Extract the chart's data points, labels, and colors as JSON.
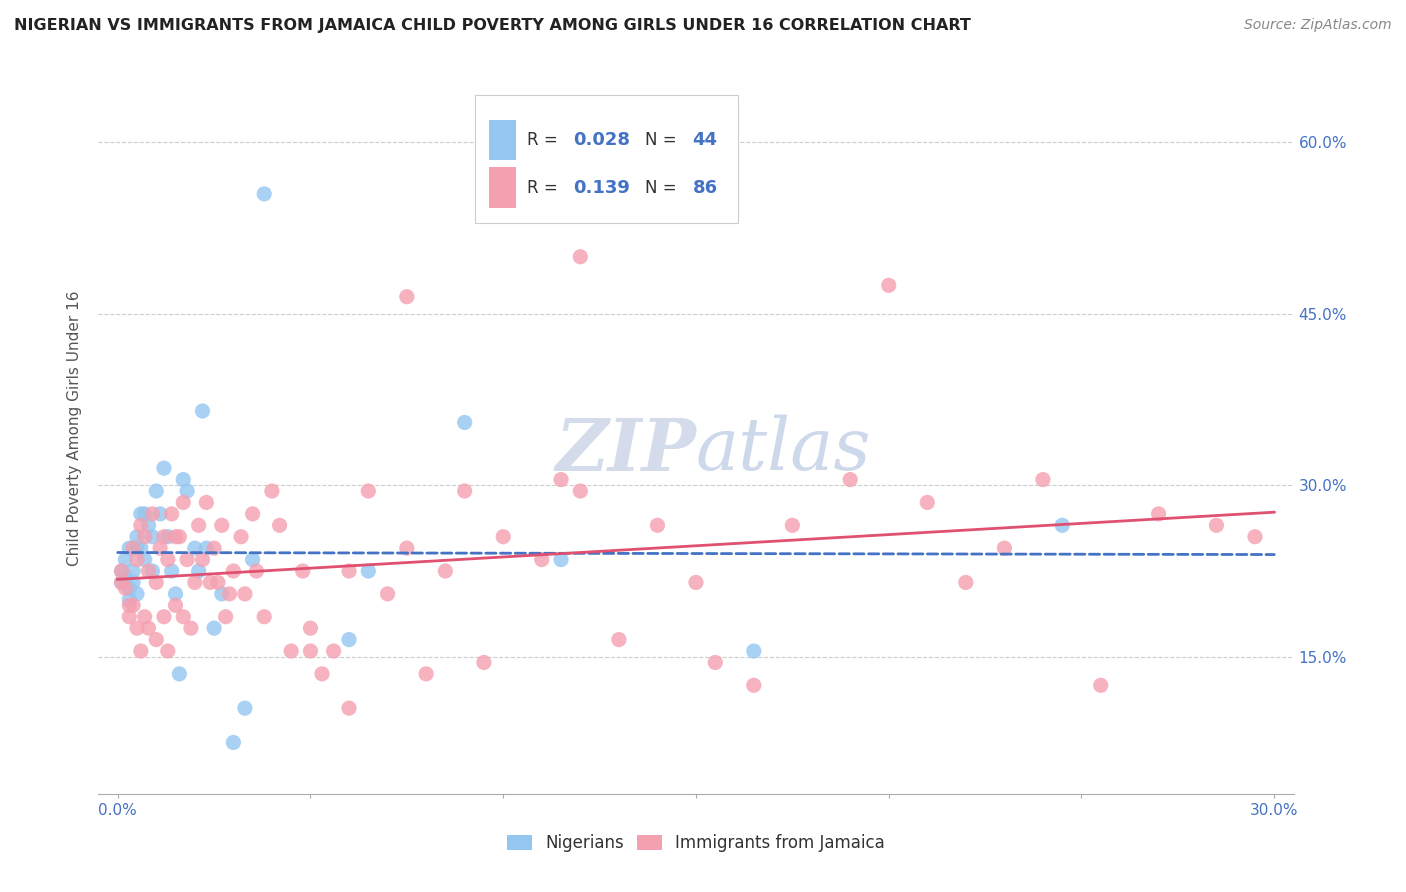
{
  "title": "NIGERIAN VS IMMIGRANTS FROM JAMAICA CHILD POVERTY AMONG GIRLS UNDER 16 CORRELATION CHART",
  "source": "Source: ZipAtlas.com",
  "ylabel_label": "Child Poverty Among Girls Under 16",
  "xlim": [
    -0.005,
    0.305
  ],
  "ylim": [
    0.03,
    0.67
  ],
  "ytick_right_values": [
    0.15,
    0.3,
    0.45,
    0.6
  ],
  "ytick_right_labels": [
    "15.0%",
    "30.0%",
    "45.0%",
    "60.0%"
  ],
  "ytick_gridline_values": [
    0.15,
    0.3,
    0.45,
    0.6
  ],
  "nigerian_R": 0.028,
  "nigerian_N": 44,
  "jamaica_R": 0.139,
  "jamaica_N": 86,
  "nigerian_color": "#93c6f0",
  "jamaica_color": "#f4a0b0",
  "nigerian_line_color": "#4472c4",
  "jamaica_line_color": "#e05070",
  "nigerian_x": [
    0.001,
    0.001,
    0.002,
    0.002,
    0.003,
    0.003,
    0.003,
    0.004,
    0.004,
    0.005,
    0.005,
    0.005,
    0.006,
    0.006,
    0.007,
    0.007,
    0.008,
    0.009,
    0.009,
    0.01,
    0.011,
    0.012,
    0.013,
    0.014,
    0.015,
    0.016,
    0.017,
    0.018,
    0.02,
    0.021,
    0.022,
    0.023,
    0.025,
    0.027,
    0.03,
    0.033,
    0.035,
    0.038,
    0.06,
    0.065,
    0.09,
    0.115,
    0.165,
    0.245
  ],
  "nigerian_y": [
    0.225,
    0.215,
    0.235,
    0.22,
    0.245,
    0.21,
    0.2,
    0.225,
    0.215,
    0.255,
    0.245,
    0.205,
    0.275,
    0.245,
    0.275,
    0.235,
    0.265,
    0.255,
    0.225,
    0.295,
    0.275,
    0.315,
    0.255,
    0.225,
    0.205,
    0.135,
    0.305,
    0.295,
    0.245,
    0.225,
    0.365,
    0.245,
    0.175,
    0.205,
    0.075,
    0.105,
    0.235,
    0.555,
    0.165,
    0.225,
    0.355,
    0.235,
    0.155,
    0.265
  ],
  "jamaica_x": [
    0.001,
    0.001,
    0.002,
    0.003,
    0.003,
    0.004,
    0.004,
    0.005,
    0.005,
    0.006,
    0.006,
    0.007,
    0.007,
    0.008,
    0.008,
    0.009,
    0.01,
    0.01,
    0.011,
    0.012,
    0.012,
    0.013,
    0.013,
    0.014,
    0.015,
    0.015,
    0.016,
    0.017,
    0.017,
    0.018,
    0.019,
    0.02,
    0.021,
    0.022,
    0.023,
    0.024,
    0.025,
    0.026,
    0.027,
    0.028,
    0.029,
    0.03,
    0.032,
    0.033,
    0.035,
    0.036,
    0.038,
    0.04,
    0.042,
    0.045,
    0.048,
    0.05,
    0.053,
    0.056,
    0.06,
    0.065,
    0.07,
    0.075,
    0.08,
    0.085,
    0.09,
    0.095,
    0.1,
    0.11,
    0.115,
    0.12,
    0.13,
    0.14,
    0.15,
    0.155,
    0.165,
    0.175,
    0.19,
    0.2,
    0.21,
    0.22,
    0.23,
    0.24,
    0.255,
    0.27,
    0.285,
    0.295,
    0.05,
    0.06,
    0.075,
    0.12
  ],
  "jamaica_y": [
    0.215,
    0.225,
    0.21,
    0.195,
    0.185,
    0.245,
    0.195,
    0.235,
    0.175,
    0.265,
    0.155,
    0.255,
    0.185,
    0.225,
    0.175,
    0.275,
    0.215,
    0.165,
    0.245,
    0.255,
    0.185,
    0.235,
    0.155,
    0.275,
    0.255,
    0.195,
    0.255,
    0.285,
    0.185,
    0.235,
    0.175,
    0.215,
    0.265,
    0.235,
    0.285,
    0.215,
    0.245,
    0.215,
    0.265,
    0.185,
    0.205,
    0.225,
    0.255,
    0.205,
    0.275,
    0.225,
    0.185,
    0.295,
    0.265,
    0.155,
    0.225,
    0.175,
    0.135,
    0.155,
    0.225,
    0.295,
    0.205,
    0.245,
    0.135,
    0.225,
    0.295,
    0.145,
    0.255,
    0.235,
    0.305,
    0.295,
    0.165,
    0.265,
    0.215,
    0.145,
    0.125,
    0.265,
    0.305,
    0.475,
    0.285,
    0.215,
    0.245,
    0.305,
    0.125,
    0.275,
    0.265,
    0.255,
    0.155,
    0.105,
    0.465,
    0.5
  ]
}
